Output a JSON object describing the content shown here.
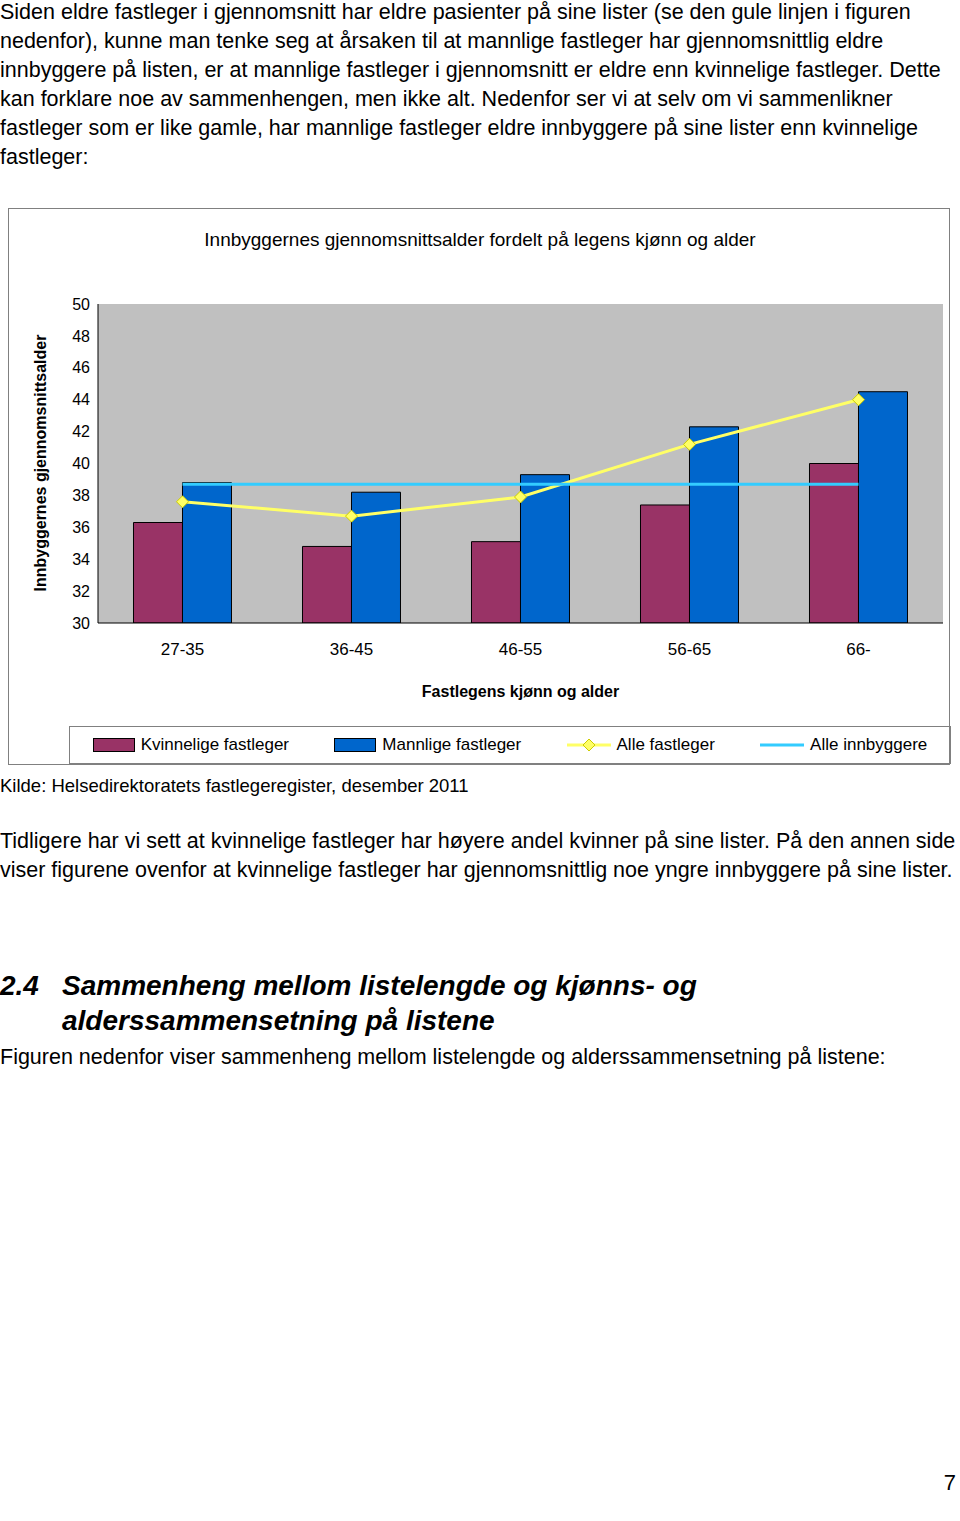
{
  "document": {
    "paragraphs_before": [
      "Siden eldre fastleger i gjennomsnitt har eldre pasienter på sine lister (se den gule linjen i figuren nedenfor), kunne man tenke seg at årsaken til at mannlige fastleger har gjennomsnittlig eldre innbyggere på listen, er at mannlige fastleger i gjennomsnitt er eldre enn kvinnelige fastleger. Dette kan forklare noe av sammenhengen, men ikke alt. Nedenfor ser vi at selv om vi sammenlikner fastleger som er like gamle, har mannlige fastleger eldre innbyggere på sine lister enn kvinnelige fastleger:"
    ],
    "source": "Kilde: Helsedirektoratets fastlegeregister, desember 2011",
    "paragraphs_after": [
      "Tidligere har vi sett at kvinnelige fastleger har høyere andel kvinner på sine lister. På den annen side viser figurene ovenfor at kvinnelige fastleger har gjennomsnittlig noe yngre innbyggere på sine lister."
    ],
    "heading": {
      "number": "2.4",
      "title": "Sammenheng mellom listelengde og kjønns- og alderssammensetning på listene"
    },
    "paragraphs_end": [
      "Figuren nedenfor viser sammenheng mellom listelengde og alderssammensetning på listene:"
    ],
    "page_number": 7
  },
  "chart_data": {
    "type": "bar",
    "title": "Innbyggernes gjennomsnittsalder fordelt på legens kjønn og alder",
    "x_label": "Fastlegens kjønn og alder",
    "y_label": "Innbyggernes gjennomsnittsalder",
    "categories": [
      "27-35",
      "36-45",
      "46-55",
      "56-65",
      "66-"
    ],
    "series": [
      {
        "name": "Kvinnelige fastleger",
        "type": "bar",
        "color": "#993366",
        "values": [
          36.3,
          34.8,
          35.1,
          37.4,
          40.0
        ]
      },
      {
        "name": "Mannlige fastleger",
        "type": "bar",
        "color": "#0066cc",
        "values": [
          38.8,
          38.2,
          39.3,
          42.3,
          44.5
        ]
      },
      {
        "name": "Alle fastleger",
        "type": "line",
        "color": "#ffff66",
        "marker": "diamond",
        "values": [
          37.6,
          36.7,
          37.9,
          41.2,
          44.0
        ]
      },
      {
        "name": "Alle innbyggere",
        "type": "line",
        "color": "#33ccff",
        "marker": "none",
        "values": [
          38.7,
          38.7,
          38.7,
          38.7,
          38.7
        ]
      }
    ],
    "ylim": [
      30,
      50
    ],
    "yticks": [
      30,
      32,
      34,
      36,
      38,
      40,
      42,
      44,
      46,
      48,
      50
    ],
    "grid": false
  }
}
